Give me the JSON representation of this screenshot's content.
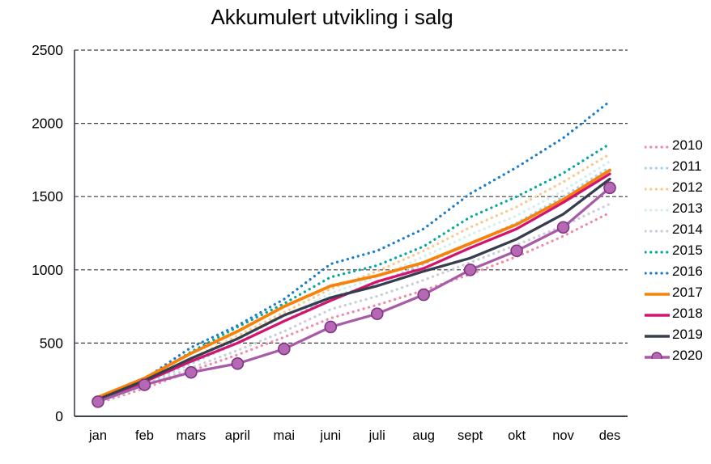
{
  "chart_data": {
    "type": "line",
    "title": "Akkumulert utvikling i salg",
    "xlabel": "",
    "ylabel": "",
    "categories": [
      "jan",
      "feb",
      "mars",
      "april",
      "mai",
      "juni",
      "juli",
      "aug",
      "sept",
      "okt",
      "nov",
      "des"
    ],
    "yticks": [
      0,
      500,
      1000,
      1500,
      2000,
      2500
    ],
    "ylim": [
      0,
      2500
    ],
    "grid": "horizontal-dashed",
    "legend_position": "right",
    "axis_color": "#39414F",
    "grid_color": "#3a3a3a",
    "series": [
      {
        "name": "2010",
        "style": "dotted",
        "color": "#F08CA6",
        "values": [
          90,
          190,
          310,
          420,
          540,
          670,
          760,
          860,
          970,
          1090,
          1230,
          1390
        ]
      },
      {
        "name": "2011",
        "style": "dotted",
        "color": "#A3D3F4",
        "values": [
          105,
          220,
          360,
          500,
          650,
          810,
          910,
          1040,
          1180,
          1320,
          1500,
          1700
        ]
      },
      {
        "name": "2012",
        "style": "dotted",
        "color": "#F9CA8F",
        "values": [
          115,
          240,
          395,
          550,
          710,
          870,
          990,
          1130,
          1290,
          1430,
          1600,
          1790
        ]
      },
      {
        "name": "2013",
        "style": "dotted",
        "color": "#CFF0EC",
        "values": [
          110,
          230,
          375,
          520,
          680,
          840,
          950,
          1090,
          1240,
          1370,
          1540,
          1740
        ]
      },
      {
        "name": "2014",
        "style": "dotted",
        "color": "#C9CED8",
        "values": [
          95,
          205,
          330,
          450,
          580,
          730,
          820,
          930,
          1050,
          1170,
          1300,
          1450
        ]
      },
      {
        "name": "2015",
        "style": "dotted",
        "color": "#0AA79D",
        "values": [
          120,
          245,
          440,
          610,
          770,
          950,
          1030,
          1160,
          1360,
          1500,
          1660,
          1860
        ]
      },
      {
        "name": "2016",
        "style": "dotted",
        "color": "#1E7DC8",
        "values": [
          125,
          255,
          470,
          620,
          800,
          1040,
          1130,
          1280,
          1520,
          1700,
          1900,
          2150
        ]
      },
      {
        "name": "2017",
        "style": "solid",
        "color": "#F6820C",
        "values": [
          130,
          260,
          430,
          580,
          750,
          890,
          960,
          1050,
          1180,
          1310,
          1480,
          1680
        ]
      },
      {
        "name": "2018",
        "style": "solid",
        "color": "#D3146E",
        "values": [
          110,
          235,
          375,
          500,
          650,
          790,
          920,
          1010,
          1150,
          1280,
          1460,
          1655
        ]
      },
      {
        "name": "2019",
        "style": "solid",
        "color": "#363E4D",
        "values": [
          115,
          245,
          395,
          530,
          690,
          810,
          890,
          990,
          1080,
          1210,
          1380,
          1620
        ]
      },
      {
        "name": "2020",
        "style": "solid-marker",
        "color": "#A85CA8",
        "marker_fill": "#B668B4",
        "marker_stroke": "#7E3683",
        "values": [
          100,
          215,
          300,
          360,
          460,
          610,
          700,
          830,
          1000,
          1130,
          1290,
          1560
        ]
      }
    ]
  }
}
